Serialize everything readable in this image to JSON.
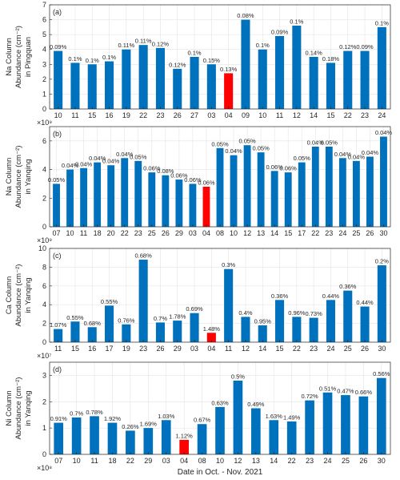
{
  "chart_data": [
    {
      "type": "bar",
      "panel_label": "(a)",
      "ylabel": [
        "Na Column",
        "Abundance (cm⁻²)",
        "in Pingquan"
      ],
      "exponent_label": "×10⁹",
      "yticks": [
        "0",
        "1",
        "2",
        "3",
        "4",
        "5",
        "6",
        "7"
      ],
      "ylim": [
        0,
        7
      ],
      "grid": true,
      "categories": [
        "10",
        "11",
        "15",
        "16",
        "19",
        "22",
        "23",
        "26",
        "27",
        "03",
        "04",
        "09",
        "10",
        "11",
        "12",
        "14",
        "15",
        "22",
        "23",
        "24"
      ],
      "values": [
        3.9,
        3.1,
        3.0,
        3.2,
        4.0,
        4.3,
        4.1,
        2.7,
        3.5,
        3.0,
        2.4,
        6.0,
        4.0,
        4.9,
        5.6,
        3.5,
        3.1,
        3.9,
        3.9,
        5.5
      ],
      "labels": [
        "0.09%",
        "0.1%",
        "0.1%",
        "0.1%",
        "0.11%",
        "0.11%",
        "0.12%",
        "0.12%",
        "0.1%",
        "0.15%",
        "0.13%",
        "0.08%",
        "0.1%",
        "0.09%",
        "0.1%",
        "0.14%",
        "0.18%",
        "0.12%",
        "0.09%",
        "0.1%"
      ],
      "highlight_index": 10,
      "bar_color": "#0072BD",
      "highlight_color": "#FF0000"
    },
    {
      "type": "bar",
      "panel_label": "(b)",
      "ylabel": [
        "Na Column",
        "Abundance (cm⁻²)",
        "in Yanqing"
      ],
      "exponent_label": "×10⁹",
      "yticks": [
        "0",
        "2",
        "4",
        "6"
      ],
      "ylim": [
        0,
        7
      ],
      "grid": true,
      "categories": [
        "07",
        "10",
        "11",
        "18",
        "20",
        "22",
        "23",
        "25",
        "26",
        "29",
        "03",
        "04",
        "08",
        "10",
        "12",
        "13",
        "14",
        "15",
        "17",
        "22",
        "23",
        "24",
        "25",
        "26",
        "30"
      ],
      "values": [
        3.0,
        4.0,
        4.1,
        4.5,
        4.3,
        4.8,
        4.6,
        3.8,
        3.6,
        3.3,
        3.0,
        2.8,
        5.5,
        5.0,
        5.7,
        5.2,
        3.9,
        3.8,
        4.5,
        5.6,
        5.6,
        4.8,
        4.6,
        4.9,
        6.3
      ],
      "labels": [
        "0.05%",
        "0.04%",
        "0.04%",
        "0.04%",
        "0.04%",
        "0.04%",
        "0.05%",
        "0.06%",
        "0.08%",
        "0.06%",
        "0.06%",
        "0.06%",
        "0.05%",
        "0.04%",
        "0.05%",
        "0.05%",
        "0.06%",
        "0.06%",
        "0.05%",
        "0.04%",
        "0.05%",
        "0.04%",
        "0.04%",
        "0.04%",
        "0.04%"
      ],
      "highlight_index": 11,
      "bar_color": "#0072BD",
      "highlight_color": "#FF0000"
    },
    {
      "type": "bar",
      "panel_label": "(c)",
      "ylabel": [
        "Ca Column",
        "Abundance (cm⁻²)",
        "in Yanqing"
      ],
      "exponent_label": "×10⁷",
      "yticks": [
        "0",
        "2",
        "4",
        "6",
        "8",
        "10"
      ],
      "ylim": [
        0,
        10
      ],
      "grid": true,
      "categories": [
        "11",
        "15",
        "16",
        "17",
        "19",
        "23",
        "26",
        "29",
        "03",
        "04",
        "11",
        "12",
        "14",
        "15",
        "22",
        "23",
        "24",
        "25",
        "26",
        "30"
      ],
      "values": [
        1.4,
        2.2,
        1.6,
        3.9,
        1.9,
        8.8,
        2.1,
        2.3,
        3.1,
        1.0,
        7.8,
        2.7,
        1.8,
        4.5,
        2.7,
        2.6,
        4.5,
        5.5,
        3.8,
        8.2
      ],
      "labels": [
        "1.07%",
        "0.55%",
        "0.68%",
        "0.55%",
        "0.76%",
        "0.68%",
        "0.7%",
        "1.78%",
        "0.69%",
        "1.48%",
        "0.3%",
        "0.4%",
        "0.95%",
        "0.36%",
        "0.96%",
        "0.73%",
        "0.44%",
        "0.36%",
        "0.44%",
        "0.2%"
      ],
      "highlight_index": 9,
      "bar_color": "#0072BD",
      "highlight_color": "#FF0000"
    },
    {
      "type": "bar",
      "panel_label": "(d)",
      "ylabel": [
        "Ni Column",
        "Abundance (cm⁻²)",
        "in Yanqing"
      ],
      "exponent_label": "×10⁸",
      "yticks": [
        "0",
        "1",
        "2",
        "3"
      ],
      "ylim": [
        0,
        3.5
      ],
      "grid": true,
      "categories": [
        "07",
        "10",
        "11",
        "18",
        "22",
        "29",
        "03",
        "04",
        "08",
        "10",
        "12",
        "13",
        "14",
        "22",
        "23",
        "24",
        "25",
        "26",
        "30"
      ],
      "values": [
        1.2,
        1.4,
        1.45,
        1.2,
        0.9,
        1.0,
        1.3,
        0.55,
        1.15,
        1.8,
        2.8,
        1.75,
        1.3,
        1.25,
        2.05,
        2.35,
        2.25,
        2.2,
        2.9
      ],
      "labels": [
        "0.91%",
        "0.7%",
        "0.78%",
        "1.92%",
        "0.26%",
        "1.69%",
        "1.03%",
        "1.12%",
        "0.67%",
        "0.63%",
        "0.5%",
        "0.49%",
        "1.63%",
        "1.49%",
        "0.72%",
        "0.51%",
        "0.47%",
        "0.66%",
        "0.56%"
      ],
      "highlight_index": 7,
      "bar_color": "#0072BD",
      "highlight_color": "#FF0000"
    }
  ],
  "xlabel": "Date in Oct. - Nov. 2021"
}
